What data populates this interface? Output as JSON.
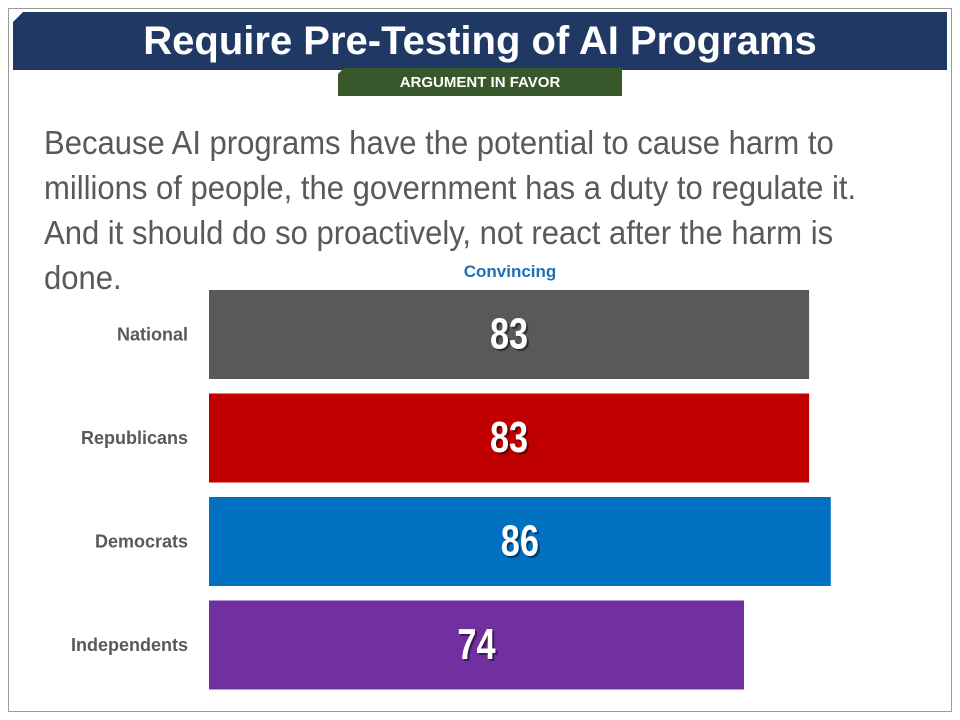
{
  "header": {
    "title": "Require Pre-Testing of AI Programs",
    "tag": "ARGUMENT IN FAVOR"
  },
  "statement": "Because AI programs have the potential to cause harm to millions of people, the government has a duty to regulate it. And it should do so proactively, not react after the harm is done.",
  "colors": {
    "title_bg": "#1f3864",
    "tag_bg": "#38572a",
    "legend_text": "#1f6fb5",
    "category_text": "#595959"
  },
  "chart_data": {
    "type": "bar",
    "orientation": "horizontal",
    "series": [
      {
        "name": "Convincing",
        "values": [
          83,
          83,
          86,
          74
        ]
      }
    ],
    "categories": [
      "National",
      "Republicans",
      "Democrats",
      "Independents"
    ],
    "bar_colors": [
      "#595959",
      "#c00000",
      "#0070c0",
      "#7030a0"
    ],
    "data_labels": [
      "83",
      "83",
      "86",
      "74"
    ],
    "xlim": [
      0,
      100
    ],
    "grid": false,
    "legend": "top-center"
  }
}
